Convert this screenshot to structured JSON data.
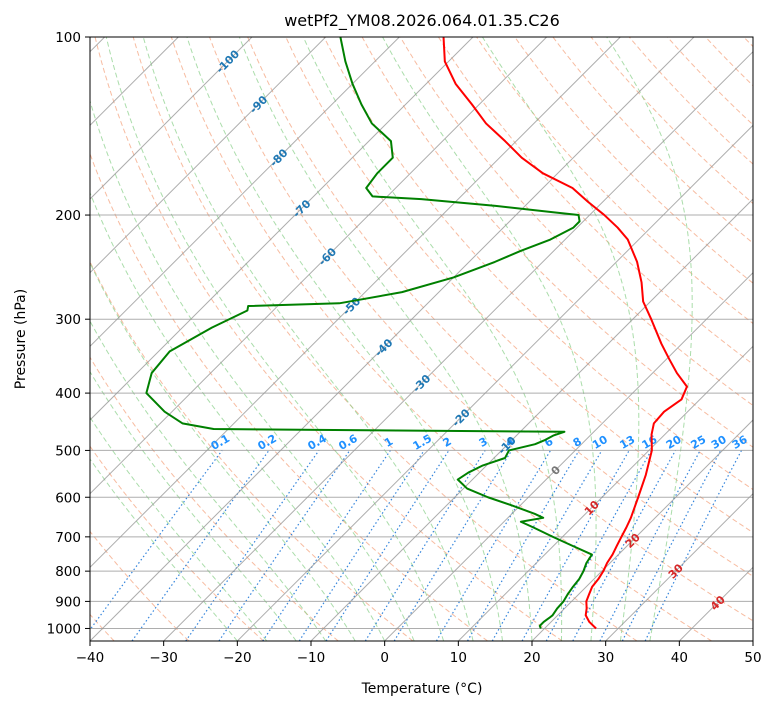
{
  "chart_data": {
    "type": "line",
    "subtype": "skew-T log-P diagram",
    "title": "wetPf2_YM08.2026.064.01.35.C26",
    "xlabel": "Temperature (°C)",
    "ylabel": "Pressure (hPa)",
    "xlim": [
      -40,
      50
    ],
    "ylim": [
      1050,
      100
    ],
    "x_ticks": [
      -40,
      -30,
      -20,
      -10,
      0,
      10,
      20,
      30,
      40,
      50
    ],
    "x_tick_labels": [
      "−40",
      "−30",
      "−20",
      "−10",
      "0",
      "10",
      "20",
      "30",
      "40",
      "50"
    ],
    "y_ticks": [
      100,
      200,
      300,
      400,
      500,
      600,
      700,
      800,
      900,
      1000
    ],
    "y_tick_labels": [
      "100",
      "200",
      "300",
      "400",
      "500",
      "600",
      "700",
      "800",
      "900",
      "1000"
    ],
    "grid": true,
    "series": [
      {
        "name": "temperature",
        "color": "#ff0000",
        "points": [
          [
            1000,
            27.0
          ],
          [
            975,
            25.2
          ],
          [
            950,
            23.8
          ],
          [
            925,
            23.0
          ],
          [
            900,
            22.0
          ],
          [
            875,
            21.4
          ],
          [
            850,
            20.8
          ],
          [
            825,
            20.6
          ],
          [
            800,
            20.2
          ],
          [
            775,
            19.6
          ],
          [
            750,
            19.2
          ],
          [
            725,
            18.6
          ],
          [
            700,
            18.0
          ],
          [
            675,
            17.4
          ],
          [
            650,
            16.7
          ],
          [
            600,
            14.9
          ],
          [
            550,
            12.9
          ],
          [
            500,
            10.4
          ],
          [
            470,
            8.2
          ],
          [
            450,
            7.0
          ],
          [
            430,
            6.8
          ],
          [
            410,
            7.5
          ],
          [
            390,
            6.5
          ],
          [
            370,
            3.3
          ],
          [
            350,
            0.3
          ],
          [
            330,
            -2.8
          ],
          [
            300,
            -7.5
          ],
          [
            280,
            -11.0
          ],
          [
            260,
            -13.8
          ],
          [
            240,
            -17.2
          ],
          [
            220,
            -21.5
          ],
          [
            210,
            -24.5
          ],
          [
            200,
            -28.0
          ],
          [
            190,
            -32.0
          ],
          [
            180,
            -36.0
          ],
          [
            170,
            -42.0
          ],
          [
            160,
            -47.0
          ],
          [
            150,
            -51.5
          ],
          [
            140,
            -56.5
          ],
          [
            130,
            -61.0
          ],
          [
            120,
            -66.0
          ],
          [
            110,
            -70.5
          ],
          [
            100,
            -74.0
          ]
        ]
      },
      {
        "name": "dewpoint",
        "color": "#008000",
        "points": [
          [
            1000,
            19.5
          ],
          [
            990,
            19.0
          ],
          [
            975,
            19.0
          ],
          [
            960,
            19.2
          ],
          [
            950,
            19.3
          ],
          [
            925,
            19.0
          ],
          [
            900,
            18.9
          ],
          [
            875,
            18.5
          ],
          [
            850,
            18.2
          ],
          [
            825,
            18.0
          ],
          [
            800,
            17.5
          ],
          [
            775,
            16.8
          ],
          [
            750,
            16.4
          ],
          [
            725,
            12.6
          ],
          [
            700,
            8.7
          ],
          [
            675,
            4.8
          ],
          [
            660,
            2.3
          ],
          [
            650,
            4.8
          ],
          [
            640,
            3.1
          ],
          [
            620,
            -1.0
          ],
          [
            600,
            -5.5
          ],
          [
            580,
            -9.5
          ],
          [
            560,
            -12.0
          ],
          [
            545,
            -11.5
          ],
          [
            530,
            -10.5
          ],
          [
            515,
            -8.5
          ],
          [
            500,
            -9.0
          ],
          [
            488,
            -6.3
          ],
          [
            480,
            -5.5
          ],
          [
            472,
            -5.0
          ],
          [
            465,
            -4.0
          ],
          [
            460,
            -52.0
          ],
          [
            450,
            -57.0
          ],
          [
            430,
            -61.0
          ],
          [
            400,
            -66.0
          ],
          [
            370,
            -68.0
          ],
          [
            340,
            -68.5
          ],
          [
            310,
            -66.0
          ],
          [
            290,
            -63.5
          ],
          [
            285,
            -64.0
          ],
          [
            282,
            -52.0
          ],
          [
            270,
            -45.0
          ],
          [
            255,
            -40.0
          ],
          [
            240,
            -36.5
          ],
          [
            230,
            -34.5
          ],
          [
            220,
            -32.0
          ],
          [
            210,
            -30.5
          ],
          [
            205,
            -30.5
          ],
          [
            200,
            -31.5
          ],
          [
            198,
            -35.0
          ],
          [
            193,
            -44.0
          ],
          [
            188,
            -55.0
          ],
          [
            186,
            -62.0
          ],
          [
            180,
            -64.0
          ],
          [
            170,
            -64.5
          ],
          [
            160,
            -64.5
          ],
          [
            150,
            -67.0
          ],
          [
            140,
            -72.0
          ],
          [
            130,
            -76.0
          ],
          [
            120,
            -80.0
          ],
          [
            110,
            -84.0
          ],
          [
            100,
            -88.0
          ]
        ]
      }
    ],
    "dry_adiabats": [
      -40,
      -30,
      -20,
      -10,
      0,
      10,
      20,
      30,
      40,
      50,
      60,
      70,
      80,
      90,
      100,
      110,
      120,
      130,
      140,
      150,
      160,
      170,
      180,
      190,
      200
    ],
    "moist_adiabats": [
      -20,
      -16,
      -12,
      -8,
      -4,
      0,
      4,
      8,
      12,
      16,
      20,
      24,
      28,
      32,
      36
    ],
    "isotherm_labels": [
      {
        "t": "-100",
        "p": 110
      },
      {
        "t": "-90",
        "p": 130
      },
      {
        "t": "-80",
        "p": 160
      },
      {
        "t": "-70",
        "p": 195
      },
      {
        "t": "-60",
        "p": 235
      },
      {
        "t": "-50",
        "p": 285
      },
      {
        "t": "-40",
        "p": 335
      },
      {
        "t": "-30",
        "p": 385
      },
      {
        "t": "-20",
        "p": 440
      },
      {
        "t": "-10",
        "p": 490
      },
      {
        "t": "0",
        "p": 540
      },
      {
        "t": "10",
        "p": 625
      },
      {
        "t": "20",
        "p": 710
      },
      {
        "t": "30",
        "p": 800
      },
      {
        "t": "40",
        "p": 905
      }
    ],
    "mixing_ratio_lines": [
      {
        "w": 0.1,
        "label": "0.1"
      },
      {
        "w": 0.2,
        "label": "0.2"
      },
      {
        "w": 0.4,
        "label": "0.4"
      },
      {
        "w": 0.6,
        "label": "0.6"
      },
      {
        "w": 1,
        "label": "1"
      },
      {
        "w": 1.5,
        "label": "1.5"
      },
      {
        "w": 2,
        "label": "2"
      },
      {
        "w": 3,
        "label": "3"
      },
      {
        "w": 4,
        "label": "4"
      },
      {
        "w": 6,
        "label": "6"
      },
      {
        "w": 8,
        "label": "8"
      },
      {
        "w": 10,
        "label": "10"
      },
      {
        "w": 13,
        "label": "13"
      },
      {
        "w": 16,
        "label": "16"
      },
      {
        "w": 20,
        "label": "20"
      },
      {
        "w": 25,
        "label": "25"
      },
      {
        "w": 30,
        "label": "30"
      },
      {
        "w": 36,
        "label": "36"
      }
    ],
    "mixing_ratio_label_pressure": 500
  },
  "colors": {
    "temperature": "#ff0000",
    "dewpoint": "#008000",
    "isotherm_grid": "#999999",
    "dry_adiabat": "#f4a582",
    "moist_adiabat": "#8fd18f",
    "mixing_ratio": "#1f78d8",
    "label_cold": "#1f78b4",
    "label_zero": "#777777",
    "label_warm": "#d62728",
    "mixing_label": "#1e90ff"
  }
}
